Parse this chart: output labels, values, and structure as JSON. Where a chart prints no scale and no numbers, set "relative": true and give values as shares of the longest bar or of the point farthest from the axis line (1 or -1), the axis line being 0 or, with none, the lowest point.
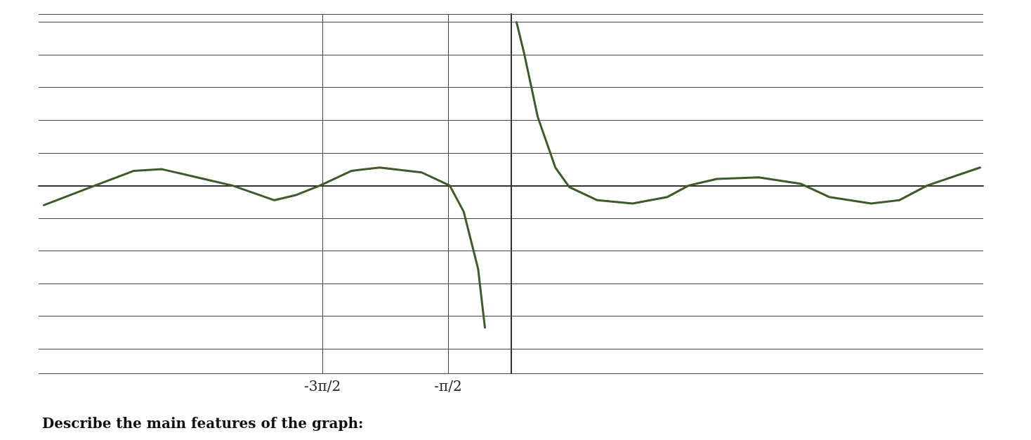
{
  "chart_data": {
    "type": "line",
    "relative": true,
    "grid": true,
    "marker": "none",
    "line_style": "solid",
    "xlim": [
      -11.8,
      11.8
    ],
    "xticks": [
      {
        "value": -4.71,
        "label": "-3π/2"
      },
      {
        "value": -1.57,
        "label": "-π/2"
      }
    ],
    "series": [
      {
        "color": "#3f5a2a",
        "x": [
          -11.67,
          -10.39,
          -9.42,
          -8.72,
          -7.67,
          -6.96,
          -5.91,
          -5.39,
          -4.77,
          -3.98,
          -3.28,
          -2.23,
          -1.53,
          -1.18,
          -0.82,
          -0.65,
          0,
          0.14,
          0.32,
          0.67,
          1.11,
          1.46,
          2.16,
          3.04,
          3.91,
          4.44,
          5.14,
          6.19,
          7.25,
          7.95,
          9.0,
          9.7,
          10.4,
          11.72
        ],
        "values": [
          -0.12,
          0,
          0.09,
          0.1,
          0.04,
          0,
          -0.09,
          -0.06,
          0,
          0.09,
          0.11,
          0.08,
          0,
          -0.16,
          -0.51,
          -0.87,
          null,
          1,
          0.82,
          0.42,
          0.11,
          -0.01,
          -0.09,
          -0.11,
          -0.07,
          0,
          0.04,
          0.05,
          0.01,
          -0.07,
          -0.11,
          -0.09,
          0,
          0.11
        ]
      }
    ],
    "annotations": [
      "Describe the main features of the graph:"
    ]
  }
}
